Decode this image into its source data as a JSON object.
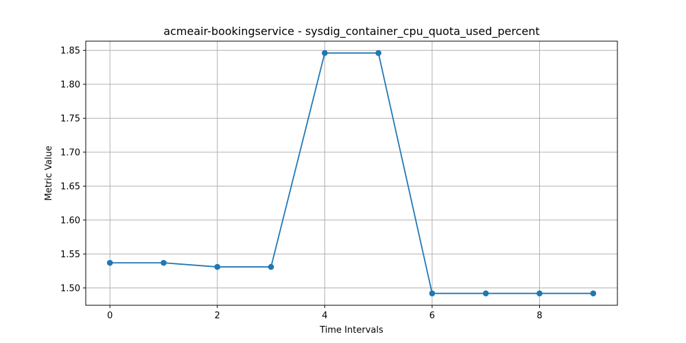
{
  "chart_data": {
    "type": "line",
    "title": "acmeair-bookingservice - sysdig_container_cpu_quota_used_percent",
    "xlabel": "Time Intervals",
    "ylabel": "Metric Value",
    "x": [
      0,
      1,
      2,
      3,
      4,
      5,
      6,
      7,
      8,
      9
    ],
    "series": [
      {
        "values": [
          1.537,
          1.537,
          1.531,
          1.531,
          1.846,
          1.846,
          1.492,
          1.492,
          1.492,
          1.492
        ],
        "color": "#1f77b4",
        "marker": "circle"
      }
    ],
    "xlim": [
      -0.45,
      9.45
    ],
    "ylim": [
      1.4745,
      1.8635
    ],
    "xticks": [
      0,
      2,
      4,
      6,
      8
    ],
    "xtick_labels": [
      "0",
      "2",
      "4",
      "6",
      "8"
    ],
    "yticks": [
      1.5,
      1.55,
      1.6,
      1.65,
      1.7,
      1.75,
      1.8,
      1.85
    ],
    "ytick_labels": [
      "1.50",
      "1.55",
      "1.60",
      "1.65",
      "1.70",
      "1.75",
      "1.80",
      "1.85"
    ],
    "grid": true,
    "grid_color": "#b0b0b0"
  }
}
